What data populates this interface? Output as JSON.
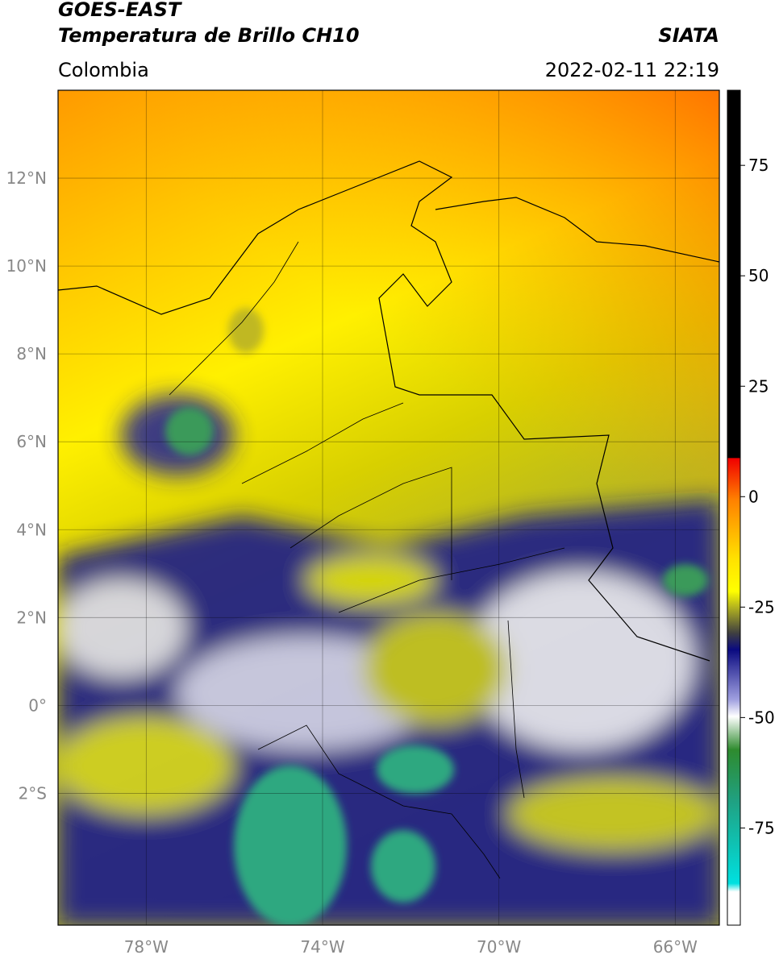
{
  "header": {
    "title": "GOES-EAST",
    "subtitle": "Temperatura de Brillo CH10",
    "region": "Colombia",
    "source": "SIATA",
    "datetime": "2022-02-11 22:19"
  },
  "map": {
    "lonlim": [
      -80,
      -65
    ],
    "latlim": [
      -5,
      14
    ],
    "lon_ticks": [
      {
        "value": -78,
        "label": "78°W"
      },
      {
        "value": -74,
        "label": "74°W"
      },
      {
        "value": -70,
        "label": "70°W"
      },
      {
        "value": -66,
        "label": "66°W"
      }
    ],
    "lat_ticks": [
      {
        "value": 12,
        "label": "12°N"
      },
      {
        "value": 10,
        "label": "10°N"
      },
      {
        "value": 8,
        "label": "8°N"
      },
      {
        "value": 6,
        "label": "6°N"
      },
      {
        "value": 4,
        "label": "4°N"
      },
      {
        "value": 2,
        "label": "2°N"
      },
      {
        "value": 0,
        "label": "0°"
      },
      {
        "value": -2,
        "label": "2°S"
      }
    ]
  },
  "colorbar": {
    "lim": [
      -97,
      92
    ],
    "ticks": [
      75,
      50,
      25,
      0,
      -25,
      -50,
      -75
    ]
  }
}
